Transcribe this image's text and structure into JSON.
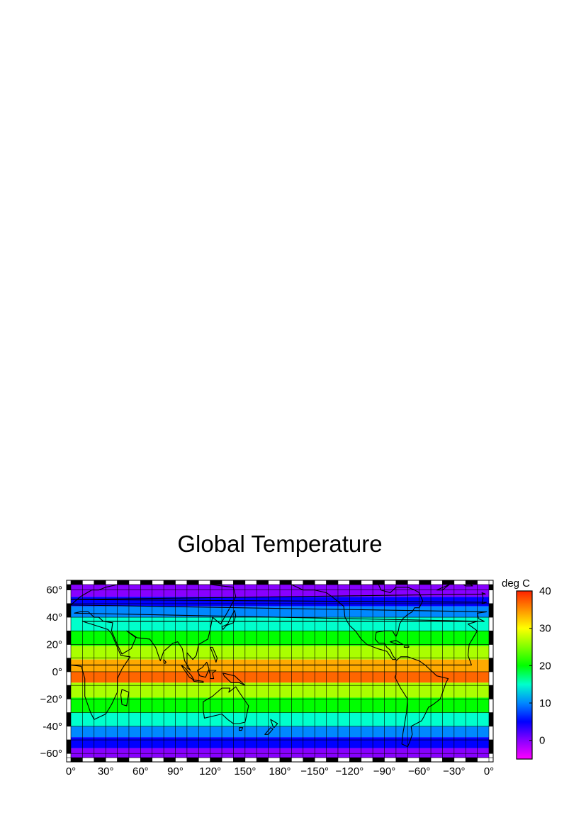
{
  "map": {
    "title": "Global Temperature",
    "projection": "equirectangular",
    "lon_range": [
      0,
      360
    ],
    "lat_range": [
      -63,
      64
    ],
    "lat_ticks": [
      {
        "value": 60,
        "label": "60°"
      },
      {
        "value": 40,
        "label": "40°"
      },
      {
        "value": 20,
        "label": "20°"
      },
      {
        "value": 0,
        "label": "0°"
      },
      {
        "value": -20,
        "label": "−20°"
      },
      {
        "value": -40,
        "label": "-40°"
      },
      {
        "value": -60,
        "label": "−60°"
      }
    ],
    "lon_ticks": [
      {
        "value": 0,
        "label": "0°"
      },
      {
        "value": 30,
        "label": "30°"
      },
      {
        "value": 60,
        "label": "60°"
      },
      {
        "value": 90,
        "label": "90°"
      },
      {
        "value": 120,
        "label": "120°"
      },
      {
        "value": 150,
        "label": "150°"
      },
      {
        "value": 180,
        "label": "180°"
      },
      {
        "value": 210,
        "label": "−150°"
      },
      {
        "value": 240,
        "label": "−120°"
      },
      {
        "value": 270,
        "label": "−90°"
      },
      {
        "value": 300,
        "label": "−60°"
      },
      {
        "value": 330,
        "label": "−30°"
      },
      {
        "value": 360,
        "label": "0°"
      }
    ],
    "grid_step_deg": 10,
    "frame_checker_step_deg": 10,
    "temperature_bands": [
      {
        "lat_from": 60,
        "lat_to": 64,
        "value": -5
      },
      {
        "lat_from": 55,
        "lat_to": 60,
        "value": 0
      },
      {
        "lat_from": 48,
        "lat_to": 55,
        "value": 5
      },
      {
        "lat_from": 40,
        "lat_to": 48,
        "value": 10
      },
      {
        "lat_from": 30,
        "lat_to": 40,
        "value": 15
      },
      {
        "lat_from": 19,
        "lat_to": 30,
        "value": 20
      },
      {
        "lat_from": 9,
        "lat_to": 19,
        "value": 25
      },
      {
        "lat_from": 0,
        "lat_to": 9,
        "value": 30
      },
      {
        "lat_from": -8,
        "lat_to": 0,
        "value": 35
      },
      {
        "lat_from": -19,
        "lat_to": -8,
        "value": 25
      },
      {
        "lat_from": -30,
        "lat_to": -19,
        "value": 20
      },
      {
        "lat_from": -40,
        "lat_to": -30,
        "value": 15
      },
      {
        "lat_from": -48,
        "lat_to": -40,
        "value": 10
      },
      {
        "lat_from": -56,
        "lat_to": -48,
        "value": 5
      },
      {
        "lat_from": -60,
        "lat_to": -56,
        "value": 0
      },
      {
        "lat_from": -63,
        "lat_to": -60,
        "value": -5
      }
    ]
  },
  "colorbar": {
    "label": "deg C",
    "range": [
      -5,
      40
    ],
    "ticks": [
      {
        "value": 40,
        "label": "40"
      },
      {
        "value": 30,
        "label": "30"
      },
      {
        "value": 20,
        "label": "20"
      },
      {
        "value": 10,
        "label": "10"
      },
      {
        "value": 0,
        "label": "0"
      }
    ],
    "stops": [
      {
        "value": -5,
        "color": "#ff00ff"
      },
      {
        "value": 0,
        "color": "#8800ff"
      },
      {
        "value": 5,
        "color": "#0000ff"
      },
      {
        "value": 10,
        "color": "#0088ff"
      },
      {
        "value": 15,
        "color": "#00ffcc"
      },
      {
        "value": 20,
        "color": "#00ff00"
      },
      {
        "value": 30,
        "color": "#ffff00"
      },
      {
        "value": 40,
        "color": "#ff2200"
      }
    ],
    "band_colors": {
      "-5": "#8800ff",
      "0": "#8800ff",
      "5": "#0000ff",
      "10": "#0088ff",
      "15": "#00ffcc",
      "20": "#00ff00",
      "25": "#aaff00",
      "30": "#ffaa00",
      "35": "#ff6600"
    }
  },
  "coastline_color": "#000000"
}
